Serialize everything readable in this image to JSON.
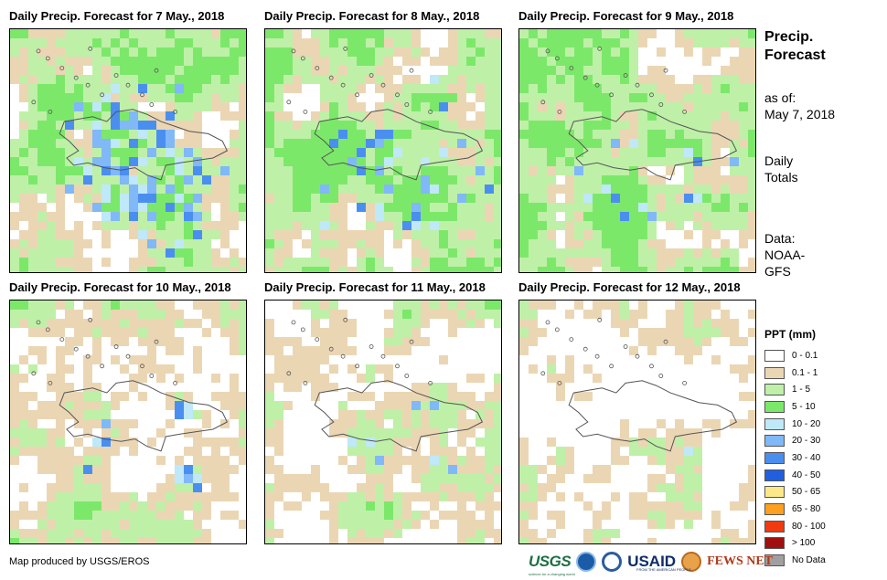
{
  "panels": [
    {
      "title": "Daily Precip. Forecast for 7 May., 2018",
      "seed": 11,
      "wet": 1.0,
      "blue_boost": 0.55
    },
    {
      "title": "Daily Precip. Forecast for 8 May., 2018",
      "seed": 23,
      "wet": 0.95,
      "blue_boost": 0.2
    },
    {
      "title": "Daily Precip. Forecast for 9 May., 2018",
      "seed": 37,
      "wet": 0.95,
      "blue_boost": 0.1
    },
    {
      "title": "Daily Precip. Forecast for 10 May., 2018",
      "seed": 41,
      "wet": 0.75,
      "blue_boost": 0.35
    },
    {
      "title": "Daily Precip. Forecast for 11 May., 2018",
      "seed": 53,
      "wet": 0.7,
      "blue_boost": 0.12
    },
    {
      "title": "Daily Precip. Forecast for 12 May., 2018",
      "seed": 67,
      "wet": 0.6,
      "blue_boost": 0.05
    }
  ],
  "info": {
    "title_line1": "Precip.",
    "title_line2": "Forecast",
    "asof_line1": "as of:",
    "asof_line2": "May 7, 2018",
    "totals_line1": "Daily",
    "totals_line2": "Totals",
    "data_line1": "Data:",
    "data_line2": "NOAA-",
    "data_line3": "GFS"
  },
  "legend": {
    "title": "PPT (mm)",
    "items": [
      {
        "label": "0 - 0.1",
        "color": "#ffffff"
      },
      {
        "label": "0.1 - 1",
        "color": "#ebd6b4"
      },
      {
        "label": "1 - 5",
        "color": "#bff0a8"
      },
      {
        "label": "5 - 10",
        "color": "#7ce86a"
      },
      {
        "label": "10 - 20",
        "color": "#bfe8f8"
      },
      {
        "label": "20 - 30",
        "color": "#80b8f8"
      },
      {
        "label": "30 - 40",
        "color": "#4a8ff0"
      },
      {
        "label": "40 - 50",
        "color": "#2060e0"
      },
      {
        "label": "50 - 65",
        "color": "#fce88a"
      },
      {
        "label": "65 - 80",
        "color": "#fca020"
      },
      {
        "label": "80 - 100",
        "color": "#f03a10"
      },
      {
        "label": "> 100",
        "color": "#a01010"
      },
      {
        "label": "No Data",
        "color": "#a0a0a0"
      }
    ]
  },
  "credit": "Map produced by USGS/EROS",
  "logos": {
    "usgs": "USGS",
    "usgs_tagline": "science for a changing world",
    "usaid": "USAID",
    "usaid_tagline": "FROM THE AMERICAN PEOPLE",
    "fews": "FEWS NET",
    "noaa_icon": "noaa-logo-icon",
    "dhs_icon": "dhs-seal-icon",
    "fews_icon": "fews-net-logo-icon"
  }
}
